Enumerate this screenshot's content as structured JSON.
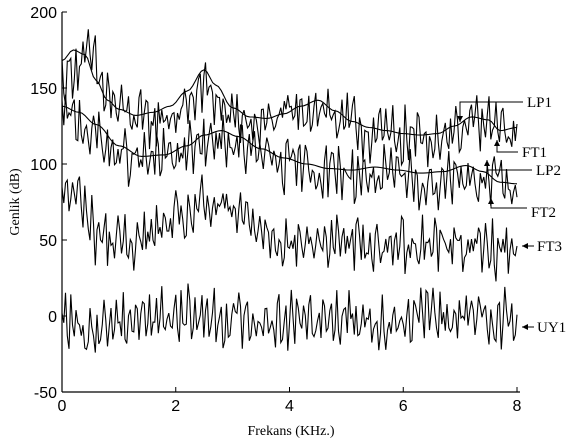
{
  "chart_data": {
    "type": "line",
    "xlabel": "Frekans (KHz.)",
    "ylabel": "Genlik (dB)",
    "xlim": [
      0,
      8
    ],
    "ylim": [
      -50,
      200
    ],
    "xticks": [
      0,
      2,
      4,
      6,
      8
    ],
    "yticks": [
      -50,
      0,
      50,
      100,
      150,
      200
    ],
    "grid": false,
    "legend": "none",
    "series": [
      {
        "name": "LP1",
        "kind": "smooth",
        "x": [
          0,
          0.2,
          0.4,
          0.6,
          0.8,
          1.0,
          1.3,
          1.6,
          1.9,
          2.2,
          2.5,
          2.7,
          3.0,
          3.3,
          3.6,
          3.9,
          4.2,
          4.5,
          4.8,
          5.1,
          5.4,
          5.7,
          6.0,
          6.3,
          6.6,
          6.9,
          7.2,
          7.5,
          7.7,
          8.0
        ],
        "y": [
          168,
          175,
          172,
          155,
          142,
          136,
          132,
          134,
          138,
          148,
          162,
          152,
          137,
          131,
          130,
          133,
          138,
          142,
          135,
          128,
          124,
          122,
          120,
          119,
          120,
          125,
          131,
          129,
          122,
          124
        ]
      },
      {
        "name": "FT1",
        "kind": "noisy",
        "x": [
          0,
          0.25,
          0.5,
          0.75,
          1.0,
          1.5,
          2.0,
          2.5,
          3.0,
          3.5,
          4.0,
          4.5,
          5.0,
          5.5,
          6.0,
          6.5,
          7.0,
          7.5,
          8.0
        ],
        "y": [
          155,
          165,
          170,
          148,
          135,
          128,
          132,
          150,
          130,
          126,
          132,
          138,
          126,
          120,
          118,
          117,
          124,
          126,
          118
        ]
      },
      {
        "name": "LP2",
        "kind": "smooth",
        "x": [
          0,
          0.3,
          0.6,
          1.0,
          1.4,
          1.8,
          2.2,
          2.5,
          2.8,
          3.1,
          3.5,
          3.9,
          4.3,
          4.7,
          5.1,
          5.5,
          5.9,
          6.3,
          6.7,
          7.1,
          7.4,
          7.7,
          8.0
        ],
        "y": [
          138,
          134,
          126,
          112,
          105,
          106,
          112,
          119,
          122,
          118,
          110,
          104,
          100,
          97,
          96,
          98,
          96,
          94,
          95,
          99,
          95,
          88,
          87
        ]
      },
      {
        "name": "FT2",
        "kind": "noisy",
        "x": [
          0,
          0.3,
          0.6,
          1.0,
          1.5,
          2.0,
          2.5,
          2.8,
          3.2,
          3.6,
          4.0,
          4.5,
          5.0,
          5.5,
          6.0,
          6.5,
          7.0,
          7.5,
          8.0
        ],
        "y": [
          132,
          128,
          118,
          105,
          102,
          106,
          112,
          116,
          110,
          104,
          98,
          96,
          94,
          92,
          90,
          88,
          94,
          88,
          84
        ]
      },
      {
        "name": "FT3",
        "kind": "noisy",
        "x": [
          0,
          0.3,
          0.6,
          1.0,
          1.5,
          2.0,
          2.5,
          2.8,
          3.2,
          3.6,
          4.0,
          4.5,
          5.0,
          5.5,
          6.0,
          6.5,
          7.0,
          7.5,
          8.0
        ],
        "y": [
          82,
          78,
          55,
          48,
          52,
          62,
          72,
          70,
          65,
          57,
          47,
          48,
          50,
          46,
          48,
          50,
          47,
          44,
          48
        ]
      },
      {
        "name": "UY1",
        "kind": "noisy",
        "x": [
          0,
          0.2,
          0.4,
          0.6,
          1.0,
          1.5,
          2.0,
          2.5,
          3.0,
          3.5,
          4.0,
          4.5,
          5.0,
          5.5,
          6.0,
          6.5,
          7.0,
          7.5,
          8.0
        ],
        "y": [
          0,
          -5,
          -18,
          -8,
          -2,
          0,
          0,
          0,
          -2,
          -2,
          -3,
          0,
          0,
          -3,
          -2,
          0,
          -2,
          0,
          -2
        ]
      }
    ],
    "annotations": [
      {
        "text": "LP1",
        "x": 7.0,
        "y": 135
      },
      {
        "text": "FT1",
        "x": 7.45,
        "y": 116
      },
      {
        "text": "LP2",
        "x": 7.5,
        "y": 98
      },
      {
        "text": "FT2",
        "x": 7.45,
        "y": 78
      },
      {
        "text": "FT3",
        "x": 8.0,
        "y": 47
      },
      {
        "text": "UY1",
        "x": 8.0,
        "y": -8
      }
    ]
  }
}
